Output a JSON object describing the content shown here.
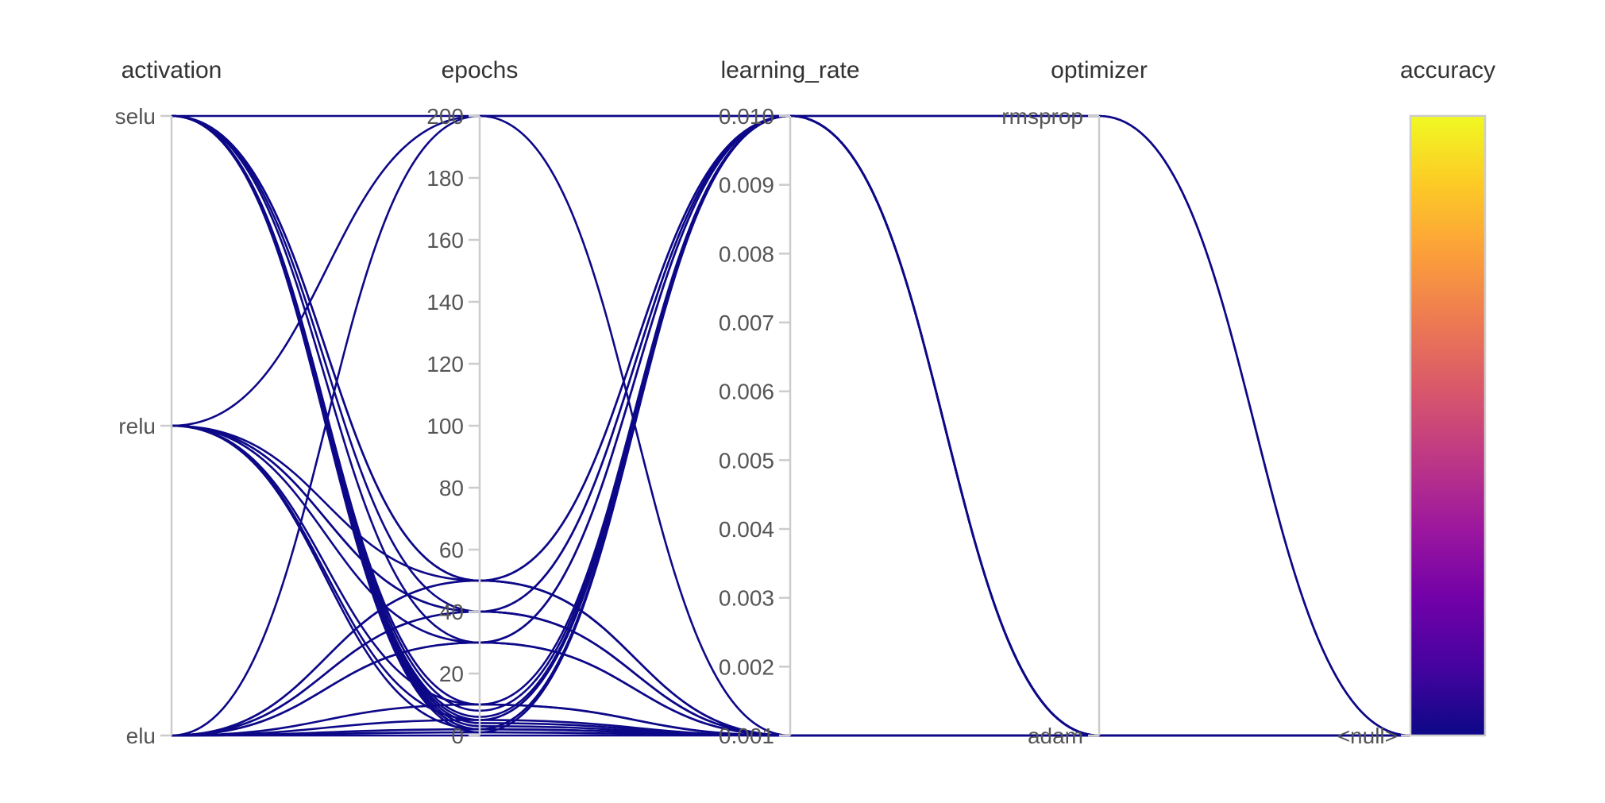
{
  "chart_data": {
    "type": "parallel-coordinates",
    "line_color": "#0d0887",
    "colorscale": [
      "#0d0887",
      "#46039f",
      "#7201a8",
      "#9c179e",
      "#bd3786",
      "#d8576b",
      "#ed7953",
      "#fb9f3a",
      "#fdca26",
      "#f0f921"
    ],
    "axes": [
      {
        "name": "activation",
        "kind": "categorical",
        "categories": [
          "elu",
          "relu",
          "selu"
        ]
      },
      {
        "name": "epochs",
        "kind": "numeric",
        "range": [
          0,
          200
        ],
        "ticks": [
          "0",
          "20",
          "40",
          "60",
          "80",
          "100",
          "120",
          "140",
          "160",
          "180",
          "200"
        ]
      },
      {
        "name": "learning_rate",
        "kind": "numeric",
        "range": [
          0.001,
          0.01
        ],
        "ticks": [
          "0.001",
          "0.002",
          "0.003",
          "0.004",
          "0.005",
          "0.006",
          "0.007",
          "0.008",
          "0.009",
          "0.010"
        ]
      },
      {
        "name": "optimizer",
        "kind": "categorical",
        "categories": [
          "adam",
          "rmsprop"
        ]
      },
      {
        "name": "accuracy",
        "kind": "colorbar",
        "categories": [
          "<null>"
        ]
      }
    ],
    "runs": [
      {
        "activation": "selu",
        "epochs": 200,
        "learning_rate": 0.01,
        "optimizer": "rmsprop",
        "accuracy": "<null>"
      },
      {
        "activation": "selu",
        "epochs": 50,
        "learning_rate": 0.01,
        "optimizer": "rmsprop",
        "accuracy": "<null>"
      },
      {
        "activation": "selu",
        "epochs": 40,
        "learning_rate": 0.001,
        "optimizer": "adam",
        "accuracy": "<null>"
      },
      {
        "activation": "selu",
        "epochs": 30,
        "learning_rate": 0.01,
        "optimizer": "adam",
        "accuracy": "<null>"
      },
      {
        "activation": "selu",
        "epochs": 10,
        "learning_rate": 0.001,
        "optimizer": "adam",
        "accuracy": "<null>"
      },
      {
        "activation": "selu",
        "epochs": 5,
        "learning_rate": 0.01,
        "optimizer": "adam",
        "accuracy": "<null>"
      },
      {
        "activation": "selu",
        "epochs": 3,
        "learning_rate": 0.001,
        "optimizer": "adam",
        "accuracy": "<null>"
      },
      {
        "activation": "selu",
        "epochs": 2,
        "learning_rate": 0.01,
        "optimizer": "adam",
        "accuracy": "<null>"
      },
      {
        "activation": "selu",
        "epochs": 1,
        "learning_rate": 0.001,
        "optimizer": "adam",
        "accuracy": "<null>"
      },
      {
        "activation": "selu",
        "epochs": 8,
        "learning_rate": 0.01,
        "optimizer": "adam",
        "accuracy": "<null>"
      },
      {
        "activation": "selu",
        "epochs": 4,
        "learning_rate": 0.001,
        "optimizer": "adam",
        "accuracy": "<null>"
      },
      {
        "activation": "selu",
        "epochs": 50,
        "learning_rate": 0.001,
        "optimizer": "adam",
        "accuracy": "<null>"
      },
      {
        "activation": "selu",
        "epochs": 6,
        "learning_rate": 0.01,
        "optimizer": "adam",
        "accuracy": "<null>"
      },
      {
        "activation": "selu",
        "epochs": 2,
        "learning_rate": 0.001,
        "optimizer": "adam",
        "accuracy": "<null>"
      },
      {
        "activation": "relu",
        "epochs": 200,
        "learning_rate": 0.01,
        "optimizer": "adam",
        "accuracy": "<null>"
      },
      {
        "activation": "relu",
        "epochs": 50,
        "learning_rate": 0.001,
        "optimizer": "adam",
        "accuracy": "<null>"
      },
      {
        "activation": "relu",
        "epochs": 40,
        "learning_rate": 0.01,
        "optimizer": "adam",
        "accuracy": "<null>"
      },
      {
        "activation": "relu",
        "epochs": 30,
        "learning_rate": 0.001,
        "optimizer": "adam",
        "accuracy": "<null>"
      },
      {
        "activation": "relu",
        "epochs": 10,
        "learning_rate": 0.01,
        "optimizer": "adam",
        "accuracy": "<null>"
      },
      {
        "activation": "relu",
        "epochs": 5,
        "learning_rate": 0.001,
        "optimizer": "adam",
        "accuracy": "<null>"
      },
      {
        "activation": "relu",
        "epochs": 2,
        "learning_rate": 0.01,
        "optimizer": "adam",
        "accuracy": "<null>"
      },
      {
        "activation": "relu",
        "epochs": 40,
        "learning_rate": 0.001,
        "optimizer": "adam",
        "accuracy": "<null>"
      },
      {
        "activation": "elu",
        "epochs": 200,
        "learning_rate": 0.001,
        "optimizer": "adam",
        "accuracy": "<null>"
      },
      {
        "activation": "elu",
        "epochs": 50,
        "learning_rate": 0.01,
        "optimizer": "adam",
        "accuracy": "<null>"
      },
      {
        "activation": "elu",
        "epochs": 40,
        "learning_rate": 0.01,
        "optimizer": "adam",
        "accuracy": "<null>"
      },
      {
        "activation": "elu",
        "epochs": 30,
        "learning_rate": 0.01,
        "optimizer": "adam",
        "accuracy": "<null>"
      },
      {
        "activation": "elu",
        "epochs": 10,
        "learning_rate": 0.001,
        "optimizer": "adam",
        "accuracy": "<null>"
      },
      {
        "activation": "elu",
        "epochs": 5,
        "learning_rate": 0.01,
        "optimizer": "adam",
        "accuracy": "<null>"
      },
      {
        "activation": "elu",
        "epochs": 2,
        "learning_rate": 0.001,
        "optimizer": "adam",
        "accuracy": "<null>"
      },
      {
        "activation": "elu",
        "epochs": 1,
        "learning_rate": 0.01,
        "optimizer": "adam",
        "accuracy": "<null>"
      },
      {
        "activation": "elu",
        "epochs": 0,
        "learning_rate": 0.001,
        "optimizer": "adam",
        "accuracy": "<null>"
      },
      {
        "activation": "elu",
        "epochs": 50,
        "learning_rate": 0.001,
        "optimizer": "adam",
        "accuracy": "<null>"
      },
      {
        "activation": "elu",
        "epochs": 40,
        "learning_rate": 0.001,
        "optimizer": "adam",
        "accuracy": "<null>"
      },
      {
        "activation": "elu",
        "epochs": 30,
        "learning_rate": 0.001,
        "optimizer": "adam",
        "accuracy": "<null>"
      }
    ]
  }
}
